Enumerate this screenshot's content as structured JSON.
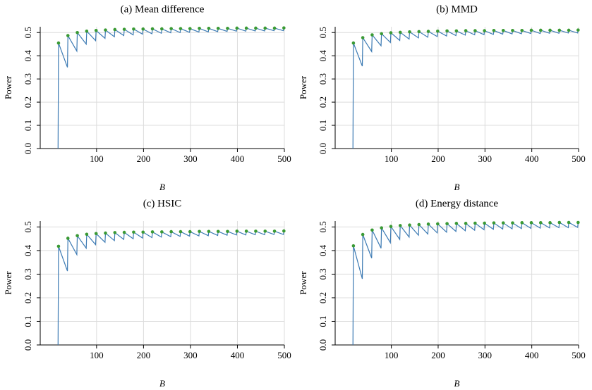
{
  "chart_data": [
    {
      "type": "line",
      "title": "(a) Mean difference",
      "xlabel": "B",
      "ylabel": "Power",
      "xlim": [
        -20,
        500
      ],
      "ylim": [
        0,
        0.525
      ],
      "xticks": [
        100,
        200,
        300,
        400,
        500
      ],
      "yticks": [
        {
          "value": 0,
          "label": "0.0"
        },
        0.1,
        0.2,
        0.3,
        0.4,
        0.5
      ],
      "grid": true,
      "series": [
        {
          "type": "line",
          "color": "#3c7ab3",
          "x": [
            18,
            19,
            38,
            39,
            58,
            59,
            78,
            79,
            98,
            99,
            118,
            119,
            138,
            139,
            158,
            159,
            178,
            179,
            198,
            199,
            218,
            219,
            238,
            239,
            258,
            259,
            278,
            279,
            298,
            299,
            318,
            319,
            338,
            339,
            358,
            359,
            378,
            379,
            398,
            399,
            418,
            419,
            438,
            439,
            458,
            459,
            478,
            479,
            498,
            499
          ],
          "values": [
            0,
            0.455,
            0.35,
            0.487,
            0.42,
            0.5,
            0.45,
            0.506,
            0.465,
            0.509,
            0.475,
            0.511,
            0.482,
            0.513,
            0.487,
            0.514,
            0.49,
            0.515,
            0.493,
            0.515,
            0.495,
            0.516,
            0.497,
            0.516,
            0.499,
            0.517,
            0.5,
            0.517,
            0.501,
            0.517,
            0.502,
            0.518,
            0.503,
            0.518,
            0.504,
            0.518,
            0.505,
            0.518,
            0.506,
            0.519,
            0.506,
            0.519,
            0.507,
            0.519,
            0.507,
            0.519,
            0.508,
            0.519,
            0.508,
            0.52
          ]
        },
        {
          "type": "scatter",
          "color": "#3a9a34",
          "x": [
            19,
            39,
            59,
            79,
            99,
            119,
            139,
            159,
            179,
            199,
            219,
            239,
            259,
            279,
            299,
            319,
            339,
            359,
            379,
            399,
            419,
            439,
            459,
            479,
            499
          ],
          "values": [
            0.455,
            0.487,
            0.5,
            0.506,
            0.509,
            0.511,
            0.513,
            0.514,
            0.515,
            0.515,
            0.516,
            0.516,
            0.517,
            0.517,
            0.517,
            0.518,
            0.518,
            0.518,
            0.518,
            0.519,
            0.519,
            0.519,
            0.519,
            0.519,
            0.52
          ]
        }
      ]
    },
    {
      "type": "line",
      "title": "(b) MMD",
      "xlabel": "B",
      "ylabel": "Power",
      "xlim": [
        -20,
        500
      ],
      "ylim": [
        0,
        0.525
      ],
      "xticks": [
        100,
        200,
        300,
        400,
        500
      ],
      "yticks": [
        {
          "value": 0,
          "label": "0.0"
        },
        0.1,
        0.2,
        0.3,
        0.4,
        0.5
      ],
      "grid": true,
      "series": [
        {
          "type": "line",
          "color": "#3c7ab3",
          "x": [
            18,
            19,
            38,
            39,
            58,
            59,
            78,
            79,
            98,
            99,
            118,
            119,
            138,
            139,
            158,
            159,
            178,
            179,
            198,
            199,
            218,
            219,
            238,
            239,
            258,
            259,
            278,
            279,
            298,
            299,
            318,
            319,
            338,
            339,
            358,
            359,
            378,
            379,
            398,
            399,
            418,
            419,
            438,
            439,
            458,
            459,
            478,
            479,
            498,
            499
          ],
          "values": [
            0,
            0.455,
            0.355,
            0.478,
            0.418,
            0.49,
            0.443,
            0.495,
            0.457,
            0.499,
            0.466,
            0.501,
            0.472,
            0.503,
            0.477,
            0.504,
            0.48,
            0.505,
            0.483,
            0.506,
            0.485,
            0.507,
            0.487,
            0.507,
            0.489,
            0.508,
            0.49,
            0.508,
            0.491,
            0.508,
            0.492,
            0.509,
            0.493,
            0.509,
            0.494,
            0.509,
            0.495,
            0.509,
            0.496,
            0.51,
            0.496,
            0.51,
            0.497,
            0.51,
            0.497,
            0.51,
            0.498,
            0.51,
            0.498,
            0.511
          ]
        },
        {
          "type": "scatter",
          "color": "#3a9a34",
          "x": [
            19,
            39,
            59,
            79,
            99,
            119,
            139,
            159,
            179,
            199,
            219,
            239,
            259,
            279,
            299,
            319,
            339,
            359,
            379,
            399,
            419,
            439,
            459,
            479,
            499
          ],
          "values": [
            0.455,
            0.478,
            0.49,
            0.495,
            0.499,
            0.501,
            0.503,
            0.504,
            0.505,
            0.506,
            0.507,
            0.507,
            0.508,
            0.508,
            0.508,
            0.509,
            0.509,
            0.509,
            0.509,
            0.51,
            0.51,
            0.51,
            0.51,
            0.51,
            0.511
          ]
        }
      ]
    },
    {
      "type": "line",
      "title": "(c) HSIC",
      "xlabel": "B",
      "ylabel": "Power",
      "xlim": [
        -20,
        500
      ],
      "ylim": [
        0,
        0.525
      ],
      "xticks": [
        100,
        200,
        300,
        400,
        500
      ],
      "yticks": [
        {
          "value": 0,
          "label": "0.0"
        },
        0.1,
        0.2,
        0.3,
        0.4,
        0.5
      ],
      "grid": true,
      "series": [
        {
          "type": "line",
          "color": "#3c7ab3",
          "x": [
            18,
            19,
            38,
            39,
            58,
            59,
            78,
            79,
            98,
            99,
            118,
            119,
            138,
            139,
            158,
            159,
            178,
            179,
            198,
            199,
            218,
            219,
            238,
            239,
            258,
            259,
            278,
            279,
            298,
            299,
            318,
            319,
            338,
            339,
            358,
            359,
            378,
            379,
            398,
            399,
            418,
            419,
            438,
            439,
            458,
            459,
            478,
            479,
            498,
            499
          ],
          "values": [
            0,
            0.418,
            0.313,
            0.452,
            0.383,
            0.463,
            0.41,
            0.469,
            0.425,
            0.472,
            0.435,
            0.474,
            0.442,
            0.476,
            0.447,
            0.477,
            0.45,
            0.478,
            0.453,
            0.478,
            0.455,
            0.479,
            0.457,
            0.479,
            0.459,
            0.48,
            0.46,
            0.48,
            0.461,
            0.48,
            0.462,
            0.481,
            0.463,
            0.481,
            0.464,
            0.481,
            0.465,
            0.481,
            0.466,
            0.482,
            0.466,
            0.482,
            0.467,
            0.482,
            0.467,
            0.482,
            0.468,
            0.482,
            0.468,
            0.483
          ]
        },
        {
          "type": "scatter",
          "color": "#3a9a34",
          "x": [
            19,
            39,
            59,
            79,
            99,
            119,
            139,
            159,
            179,
            199,
            219,
            239,
            259,
            279,
            299,
            319,
            339,
            359,
            379,
            399,
            419,
            439,
            459,
            479,
            499
          ],
          "values": [
            0.418,
            0.452,
            0.463,
            0.469,
            0.472,
            0.474,
            0.476,
            0.477,
            0.478,
            0.478,
            0.479,
            0.479,
            0.48,
            0.48,
            0.48,
            0.481,
            0.481,
            0.481,
            0.481,
            0.482,
            0.482,
            0.482,
            0.482,
            0.482,
            0.483
          ]
        }
      ]
    },
    {
      "type": "line",
      "title": "(d) Energy distance",
      "xlabel": "B",
      "ylabel": "Power",
      "xlim": [
        -20,
        500
      ],
      "ylim": [
        0,
        0.525
      ],
      "xticks": [
        100,
        200,
        300,
        400,
        500
      ],
      "yticks": [
        {
          "value": 0,
          "label": "0.0"
        },
        0.1,
        0.2,
        0.3,
        0.4,
        0.5
      ],
      "grid": true,
      "series": [
        {
          "type": "line",
          "color": "#3c7ab3",
          "x": [
            18,
            19,
            38,
            39,
            58,
            59,
            78,
            79,
            98,
            99,
            118,
            119,
            138,
            139,
            158,
            159,
            178,
            179,
            198,
            199,
            218,
            219,
            238,
            239,
            258,
            259,
            278,
            279,
            298,
            299,
            318,
            319,
            338,
            339,
            358,
            359,
            378,
            379,
            398,
            399,
            418,
            419,
            438,
            439,
            458,
            459,
            478,
            479,
            498,
            499
          ],
          "values": [
            0,
            0.42,
            0.28,
            0.468,
            0.368,
            0.487,
            0.41,
            0.496,
            0.433,
            0.502,
            0.447,
            0.506,
            0.457,
            0.508,
            0.465,
            0.51,
            0.47,
            0.512,
            0.475,
            0.513,
            0.478,
            0.514,
            0.481,
            0.515,
            0.484,
            0.515,
            0.486,
            0.516,
            0.488,
            0.516,
            0.49,
            0.517,
            0.491,
            0.517,
            0.492,
            0.517,
            0.493,
            0.518,
            0.494,
            0.518,
            0.495,
            0.518,
            0.496,
            0.518,
            0.497,
            0.519,
            0.497,
            0.519,
            0.498,
            0.519
          ]
        },
        {
          "type": "scatter",
          "color": "#3a9a34",
          "x": [
            19,
            39,
            59,
            79,
            99,
            119,
            139,
            159,
            179,
            199,
            219,
            239,
            259,
            279,
            299,
            319,
            339,
            359,
            379,
            399,
            419,
            439,
            459,
            479,
            499
          ],
          "values": [
            0.42,
            0.468,
            0.487,
            0.496,
            0.502,
            0.506,
            0.508,
            0.51,
            0.512,
            0.513,
            0.514,
            0.515,
            0.515,
            0.516,
            0.516,
            0.517,
            0.517,
            0.517,
            0.518,
            0.518,
            0.518,
            0.518,
            0.519,
            0.519,
            0.519
          ]
        }
      ]
    }
  ]
}
